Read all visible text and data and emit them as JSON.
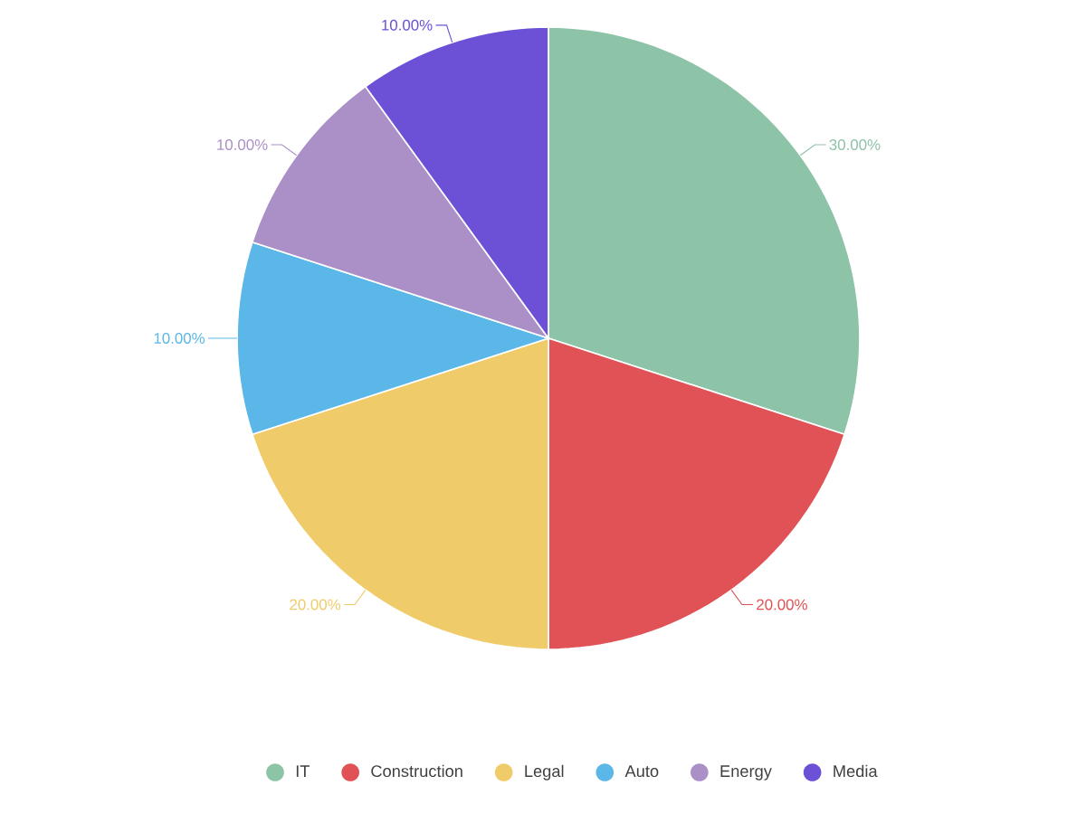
{
  "chart_data": {
    "type": "pie",
    "categories": [
      "IT",
      "Construction",
      "Legal",
      "Auto",
      "Energy",
      "Media"
    ],
    "values": [
      30,
      20,
      20,
      10,
      10,
      10
    ],
    "colors": [
      "#8dc3a7",
      "#e05256",
      "#f0cb69",
      "#5ab7e7",
      "#ab90c8",
      "#6c51d6"
    ],
    "value_labels": [
      "30.00%",
      "20.00%",
      "20.00%",
      "10.00%",
      "10.00%",
      "10.00%"
    ],
    "legend": "bottom"
  }
}
